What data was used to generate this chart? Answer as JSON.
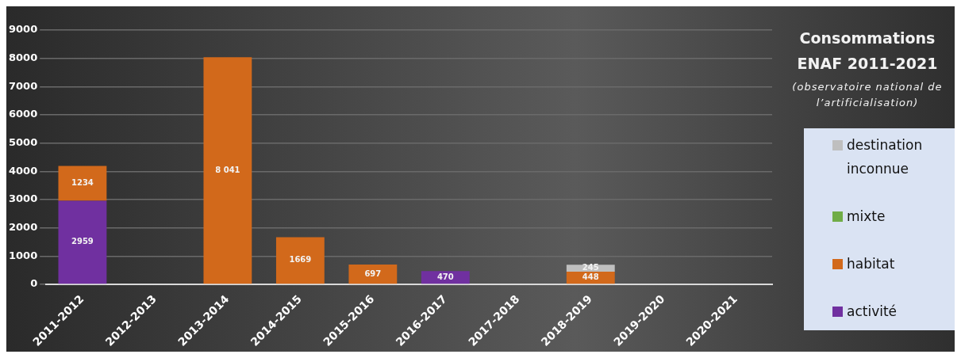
{
  "chart_data": {
    "type": "bar",
    "title": "Consommations ENAF 2011-2021",
    "subtitle": "(observatoire national de l’artificialisation)",
    "categories": [
      "2011-2012",
      "2012-2013",
      "2013-2014",
      "2014-2015",
      "2015-2016",
      "2016-2017",
      "2017-2018",
      "2018-2019",
      "2019-2020",
      "2020-2021"
    ],
    "series": [
      {
        "name": "activité",
        "color": "#7030a0",
        "values": [
          2959,
          null,
          null,
          null,
          null,
          470,
          null,
          null,
          null,
          null
        ],
        "value_labels": [
          "2959",
          null,
          null,
          null,
          null,
          "470",
          null,
          null,
          null,
          null
        ]
      },
      {
        "name": "habitat",
        "color": "#d2691b",
        "values": [
          1234,
          null,
          8041,
          1669,
          697,
          null,
          null,
          448,
          null,
          null
        ],
        "value_labels": [
          "1234",
          null,
          "8 041",
          "1669",
          "697",
          null,
          null,
          "448",
          null,
          null
        ]
      },
      {
        "name": "mixte",
        "color": "#70ad47",
        "values": [
          null,
          null,
          null,
          null,
          null,
          null,
          null,
          null,
          null,
          null
        ]
      },
      {
        "name": "destination inconnue",
        "color": "#bfbfbf",
        "values": [
          null,
          null,
          null,
          null,
          null,
          null,
          null,
          245,
          null,
          null
        ],
        "value_labels": [
          null,
          null,
          null,
          null,
          null,
          null,
          null,
          "245",
          null,
          null
        ]
      }
    ],
    "stacked": true,
    "ylim": [
      0,
      9000
    ],
    "yticks": [
      0,
      1000,
      2000,
      3000,
      4000,
      5000,
      6000,
      7000,
      8000,
      9000
    ],
    "grid": "y",
    "legend": "right"
  }
}
